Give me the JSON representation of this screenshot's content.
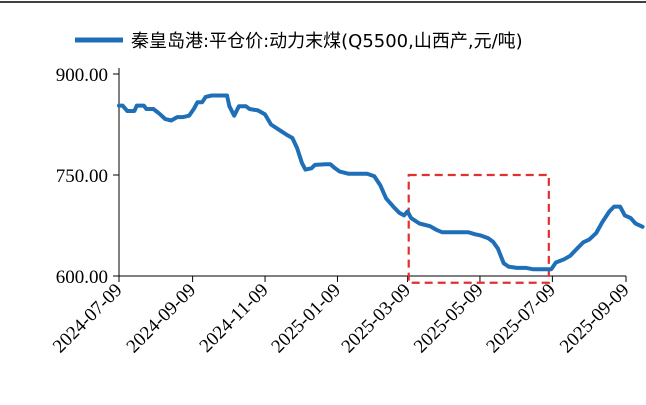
{
  "chart_data": {
    "type": "line",
    "title": "",
    "xlabel": "",
    "ylabel": "",
    "ylim": [
      600,
      900
    ],
    "yticks": [
      "600.00",
      "750.00",
      "900.00"
    ],
    "ytick_values": [
      600,
      750,
      900
    ],
    "xticks": [
      "2024-07-09",
      "2024-09-09",
      "2024-11-09",
      "2025-01-09",
      "2025-03-09",
      "2025-05-09",
      "2025-07-09",
      "2025-09-09"
    ],
    "xrange": [
      "2024-07-09",
      "2025-09-09"
    ],
    "grid": false,
    "legend_position": "top",
    "color": "#1f6fb8",
    "highlight_color": "#e03030",
    "highlight_range": {
      "x": [
        "2025-03-10",
        "2025-07-06"
      ],
      "y": [
        590,
        750
      ]
    },
    "series": [
      {
        "name": "秦皇岛港:平仓价:动力末煤(Q5500,山西产,元/吨)",
        "points": [
          [
            "2024-07-09",
            853
          ],
          [
            "2024-07-12",
            853
          ],
          [
            "2024-07-16",
            845
          ],
          [
            "2024-07-22",
            845
          ],
          [
            "2024-07-24",
            853
          ],
          [
            "2024-07-30",
            853
          ],
          [
            "2024-08-01",
            848
          ],
          [
            "2024-08-07",
            848
          ],
          [
            "2024-08-12",
            841
          ],
          [
            "2024-08-17",
            833
          ],
          [
            "2024-08-22",
            831
          ],
          [
            "2024-08-27",
            836
          ],
          [
            "2024-09-01",
            836
          ],
          [
            "2024-09-06",
            838
          ],
          [
            "2024-09-10",
            848
          ],
          [
            "2024-09-13",
            858
          ],
          [
            "2024-09-17",
            858
          ],
          [
            "2024-09-20",
            866
          ],
          [
            "2024-09-25",
            868
          ],
          [
            "2024-10-01",
            868
          ],
          [
            "2024-10-08",
            868
          ],
          [
            "2024-10-10",
            852
          ],
          [
            "2024-10-14",
            838
          ],
          [
            "2024-10-18",
            852
          ],
          [
            "2024-10-24",
            852
          ],
          [
            "2024-10-27",
            848
          ],
          [
            "2024-11-03",
            846
          ],
          [
            "2024-11-09",
            840
          ],
          [
            "2024-11-14",
            825
          ],
          [
            "2024-11-20",
            818
          ],
          [
            "2024-11-27",
            810
          ],
          [
            "2024-12-02",
            805
          ],
          [
            "2024-12-06",
            790
          ],
          [
            "2024-12-10",
            768
          ],
          [
            "2024-12-13",
            758
          ],
          [
            "2024-12-18",
            760
          ],
          [
            "2024-12-21",
            765
          ],
          [
            "2024-12-30",
            766
          ],
          [
            "2025-01-03",
            766
          ],
          [
            "2025-01-07",
            760
          ],
          [
            "2025-01-11",
            755
          ],
          [
            "2025-01-18",
            752
          ],
          [
            "2025-01-25",
            752
          ],
          [
            "2025-02-03",
            752
          ],
          [
            "2025-02-09",
            748
          ],
          [
            "2025-02-14",
            735
          ],
          [
            "2025-02-19",
            715
          ],
          [
            "2025-02-25",
            703
          ],
          [
            "2025-03-02",
            694
          ],
          [
            "2025-03-06",
            690
          ],
          [
            "2025-03-09",
            696
          ],
          [
            "2025-03-12",
            686
          ],
          [
            "2025-03-19",
            678
          ],
          [
            "2025-03-28",
            674
          ],
          [
            "2025-04-03",
            668
          ],
          [
            "2025-04-07",
            665
          ],
          [
            "2025-04-19",
            665
          ],
          [
            "2025-04-29",
            665
          ],
          [
            "2025-05-05",
            662
          ],
          [
            "2025-05-10",
            660
          ],
          [
            "2025-05-16",
            656
          ],
          [
            "2025-05-20",
            651
          ],
          [
            "2025-05-24",
            641
          ],
          [
            "2025-05-29",
            619
          ],
          [
            "2025-06-02",
            614
          ],
          [
            "2025-06-09",
            612
          ],
          [
            "2025-06-17",
            612
          ],
          [
            "2025-06-23",
            610
          ],
          [
            "2025-07-01",
            610
          ],
          [
            "2025-07-08",
            610
          ],
          [
            "2025-07-12",
            620
          ],
          [
            "2025-07-19",
            625
          ],
          [
            "2025-07-24",
            630
          ],
          [
            "2025-07-30",
            641
          ],
          [
            "2025-08-04",
            650
          ],
          [
            "2025-08-09",
            654
          ],
          [
            "2025-08-15",
            664
          ],
          [
            "2025-08-20",
            680
          ],
          [
            "2025-08-26",
            696
          ],
          [
            "2025-08-30",
            703
          ],
          [
            "2025-09-04",
            703
          ],
          [
            "2025-09-08",
            690
          ],
          [
            "2025-09-13",
            686
          ],
          [
            "2025-09-17",
            678
          ],
          [
            "2025-09-23",
            673
          ]
        ]
      }
    ]
  }
}
